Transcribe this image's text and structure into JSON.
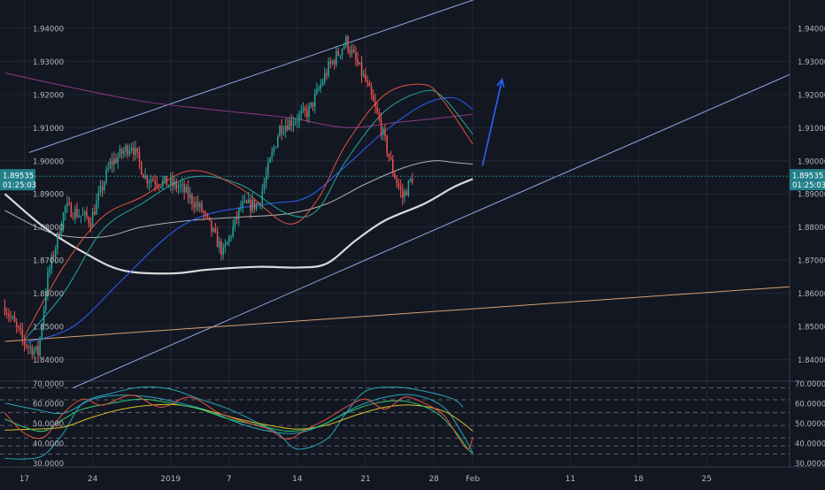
{
  "chart_data": {
    "type": "candlestick",
    "colors": {
      "background": "#131722",
      "grid": "#232834",
      "up": "#26a69a",
      "down": "#ef5350",
      "axis_text": "#b2b5be",
      "channel": "#8fa8e0",
      "long_trend": "#d8a070",
      "arrow": "#2962ff",
      "ma_white": "#d9d9d9",
      "ma_grey": "#b0b0b0",
      "ma_red": "#e0533f",
      "ma_green": "#26a69a",
      "ma_blue": "#2962ff",
      "ma_purple": "#8e3a86",
      "price_label": "#22808a",
      "rsi_red": "#e0533f",
      "rsi_green": "#2ecc71",
      "rsi_yellow": "#d4c024",
      "rsi_cyan": "#26a6b8"
    },
    "price_axis": {
      "ticks": [
        "1.94000",
        "1.93000",
        "1.92000",
        "1.91000",
        "1.90000",
        "1.89000",
        "1.88000",
        "1.87000",
        "1.86000",
        "1.85000",
        "1.84000"
      ],
      "range": [
        1.8335,
        1.9485
      ]
    },
    "current_price": {
      "value": 1.89535,
      "label": "1.89535",
      "timer": "01:25:03"
    },
    "x_axis": {
      "labels": [
        "17",
        "24",
        "2019",
        "7",
        "14",
        "21",
        "28",
        "Feb",
        "11",
        "18",
        "25"
      ],
      "label_days": [
        -15,
        -8,
        0,
        6,
        13,
        20,
        27,
        31,
        41,
        48,
        55
      ],
      "range_days": [
        -17.5,
        63.5
      ]
    },
    "candles": {
      "count": 210,
      "days_per_bar": 0.2,
      "start_day": -17,
      "anchors": [
        {
          "i": 0,
          "price": 1.856
        },
        {
          "i": 10,
          "price": 1.845
        },
        {
          "i": 17,
          "price": 1.842
        },
        {
          "i": 22,
          "price": 1.865
        },
        {
          "i": 31,
          "price": 1.886
        },
        {
          "i": 44,
          "price": 1.882
        },
        {
          "i": 54,
          "price": 1.899
        },
        {
          "i": 65,
          "price": 1.905
        },
        {
          "i": 72,
          "price": 1.895
        },
        {
          "i": 90,
          "price": 1.892
        },
        {
          "i": 101,
          "price": 1.885
        },
        {
          "i": 112,
          "price": 1.872
        },
        {
          "i": 121,
          "price": 1.886
        },
        {
          "i": 130,
          "price": 1.887
        },
        {
          "i": 141,
          "price": 1.91
        },
        {
          "i": 156,
          "price": 1.915
        },
        {
          "i": 166,
          "price": 1.928
        },
        {
          "i": 175,
          "price": 1.936
        },
        {
          "i": 185,
          "price": 1.924
        },
        {
          "i": 192,
          "price": 1.912
        },
        {
          "i": 199,
          "price": 1.897
        },
        {
          "i": 204,
          "price": 1.889
        },
        {
          "i": 209,
          "price": 1.895
        }
      ]
    },
    "trend_lines": [
      {
        "name": "upper-channel",
        "points": [
          [
            -14.5,
            1.9025
          ],
          [
            32.5,
            1.95
          ]
        ]
      },
      {
        "name": "lower-channel",
        "points": [
          [
            -10,
            1.8315
          ],
          [
            63.5,
            1.926
          ]
        ]
      },
      {
        "name": "long-trendline",
        "points": [
          [
            -17,
            1.8455
          ],
          [
            63.5,
            1.862
          ]
        ]
      }
    ],
    "arrow": {
      "from": [
        32,
        1.8985
      ],
      "to": [
        34,
        1.9245
      ]
    },
    "moving_averages": [
      {
        "key": "ma_white",
        "width": 2.2,
        "points": [
          [
            -17,
            1.89
          ],
          [
            -13,
            1.88
          ],
          [
            -9,
            1.8725
          ],
          [
            -5,
            1.867
          ],
          [
            0,
            1.866
          ],
          [
            4,
            1.8672
          ],
          [
            9,
            1.868
          ],
          [
            13,
            1.8678
          ],
          [
            16,
            1.869
          ],
          [
            19,
            1.876
          ],
          [
            22,
            1.882
          ],
          [
            26,
            1.887
          ],
          [
            29,
            1.892
          ],
          [
            31,
            1.8945
          ]
        ]
      },
      {
        "key": "ma_grey",
        "width": 1,
        "points": [
          [
            -17,
            1.885
          ],
          [
            -12,
            1.878
          ],
          [
            -7,
            1.877
          ],
          [
            -3,
            1.88
          ],
          [
            2,
            1.882
          ],
          [
            7,
            1.883
          ],
          [
            12,
            1.884
          ],
          [
            16,
            1.887
          ],
          [
            20,
            1.893
          ],
          [
            24,
            1.898
          ],
          [
            27,
            1.9
          ],
          [
            29,
            1.8995
          ],
          [
            31,
            1.899
          ]
        ]
      },
      {
        "key": "ma_purple",
        "width": 1,
        "points": [
          [
            -17,
            1.9265
          ],
          [
            -10,
            1.922
          ],
          [
            -3,
            1.918
          ],
          [
            4,
            1.9155
          ],
          [
            12,
            1.913
          ],
          [
            18,
            1.91
          ],
          [
            23,
            1.9115
          ],
          [
            28,
            1.913
          ],
          [
            31,
            1.914
          ]
        ]
      },
      {
        "key": "ma_blue",
        "width": 1,
        "points": [
          [
            -15,
            1.845
          ],
          [
            -10,
            1.85
          ],
          [
            -5,
            1.864
          ],
          [
            0,
            1.878
          ],
          [
            4,
            1.884
          ],
          [
            10,
            1.887
          ],
          [
            14,
            1.889
          ],
          [
            18,
            1.8985
          ],
          [
            22,
            1.909
          ],
          [
            26,
            1.917
          ],
          [
            29,
            1.919
          ],
          [
            31,
            1.9155
          ]
        ]
      },
      {
        "key": "ma_green",
        "width": 1,
        "points": [
          [
            -15,
            1.846
          ],
          [
            -11,
            1.86
          ],
          [
            -7,
            1.879
          ],
          [
            -3,
            1.887
          ],
          [
            2,
            1.895
          ],
          [
            7,
            1.893
          ],
          [
            12,
            1.884
          ],
          [
            15,
            1.885
          ],
          [
            18,
            1.9
          ],
          [
            22,
            1.915
          ],
          [
            26,
            1.921
          ],
          [
            28,
            1.919
          ],
          [
            31,
            1.908
          ]
        ]
      },
      {
        "key": "ma_red",
        "width": 1,
        "points": [
          [
            -15,
            1.847
          ],
          [
            -11,
            1.868
          ],
          [
            -7,
            1.883
          ],
          [
            -3,
            1.889
          ],
          [
            2,
            1.897
          ],
          [
            7,
            1.892
          ],
          [
            12,
            1.881
          ],
          [
            15,
            1.888
          ],
          [
            18,
            1.905
          ],
          [
            22,
            1.92
          ],
          [
            26,
            1.923
          ],
          [
            28,
            1.918
          ],
          [
            31,
            1.905
          ]
        ]
      }
    ],
    "rsi": {
      "axis_ticks": [
        "70.0000",
        "60.0000",
        "50.0000",
        "40.0000",
        "30.0000"
      ],
      "range": [
        28,
        71
      ],
      "dashed_levels": [
        67.7,
        61.7,
        55.3,
        48.8,
        42.5,
        38.6,
        34.5
      ],
      "lines": [
        {
          "key": "rsi_cyan",
          "points": [
            [
              -17,
              32.3
            ],
            [
              -15,
              32
            ],
            [
              -13,
              34
            ],
            [
              -11,
              45
            ],
            [
              -9,
              60
            ],
            [
              -6,
              65
            ],
            [
              -3,
              68
            ],
            [
              0,
              67
            ],
            [
              3,
              62
            ],
            [
              6,
              57
            ],
            [
              9,
              50
            ],
            [
              11,
              45
            ],
            [
              13,
              37
            ],
            [
              16,
              42
            ],
            [
              18,
              55
            ],
            [
              20,
              66
            ],
            [
              23,
              68
            ],
            [
              26,
              66
            ],
            [
              29,
              62
            ],
            [
              30,
              58
            ]
          ]
        },
        {
          "key": "rsi_cyan",
          "points": [
            [
              -17,
              60
            ],
            [
              -14,
              57
            ],
            [
              -11,
              55
            ],
            [
              -8,
              62
            ],
            [
              -5,
              64
            ],
            [
              -2,
              63
            ],
            [
              1,
              60
            ],
            [
              4,
              56
            ],
            [
              7,
              50
            ],
            [
              10,
              46
            ],
            [
              13,
              45
            ],
            [
              16,
              50
            ],
            [
              19,
              58
            ],
            [
              22,
              63
            ],
            [
              25,
              64
            ],
            [
              28,
              58
            ],
            [
              30,
              44
            ],
            [
              31,
              35
            ]
          ]
        },
        {
          "key": "rsi_yellow",
          "points": [
            [
              -17,
              46.5
            ],
            [
              -14,
              47
            ],
            [
              -11,
              48
            ],
            [
              -8,
              53
            ],
            [
              -5,
              57
            ],
            [
              -2,
              59
            ],
            [
              1,
              59
            ],
            [
              4,
              56
            ],
            [
              7,
              52
            ],
            [
              10,
              49
            ],
            [
              13,
              47
            ],
            [
              16,
              49
            ],
            [
              19,
              54
            ],
            [
              22,
              58
            ],
            [
              25,
              59
            ],
            [
              28,
              56
            ],
            [
              30,
              50
            ],
            [
              31,
              46
            ]
          ]
        },
        {
          "key": "rsi_green",
          "points": [
            [
              -17,
              52
            ],
            [
              -15,
              48
            ],
            [
              -13,
              46
            ],
            [
              -11,
              52
            ],
            [
              -9,
              57
            ],
            [
              -6,
              60
            ],
            [
              -3,
              62
            ],
            [
              0,
              60
            ],
            [
              3,
              57
            ],
            [
              6,
              52
            ],
            [
              9,
              49
            ],
            [
              12,
              46
            ],
            [
              15,
              48
            ],
            [
              18,
              55
            ],
            [
              21,
              60
            ],
            [
              24,
              61
            ],
            [
              27,
              56
            ],
            [
              29,
              47
            ],
            [
              30.5,
              37
            ],
            [
              31,
              35
            ]
          ]
        },
        {
          "key": "rsi_red",
          "points": [
            [
              -17,
              55
            ],
            [
              -15,
              45
            ],
            [
              -13,
              43
            ],
            [
              -11,
              55
            ],
            [
              -9,
              62
            ],
            [
              -7,
              59
            ],
            [
              -4,
              64
            ],
            [
              -1,
              58
            ],
            [
              2,
              63
            ],
            [
              5,
              55
            ],
            [
              8,
              50
            ],
            [
              10,
              47
            ],
            [
              12,
              42
            ],
            [
              14,
              47
            ],
            [
              16,
              52
            ],
            [
              18,
              58
            ],
            [
              20,
              62
            ],
            [
              22,
              57
            ],
            [
              24,
              63
            ],
            [
              26,
              60
            ],
            [
              28,
              54
            ],
            [
              29.5,
              43
            ],
            [
              30.5,
              37
            ],
            [
              31,
              43
            ]
          ]
        }
      ]
    }
  }
}
